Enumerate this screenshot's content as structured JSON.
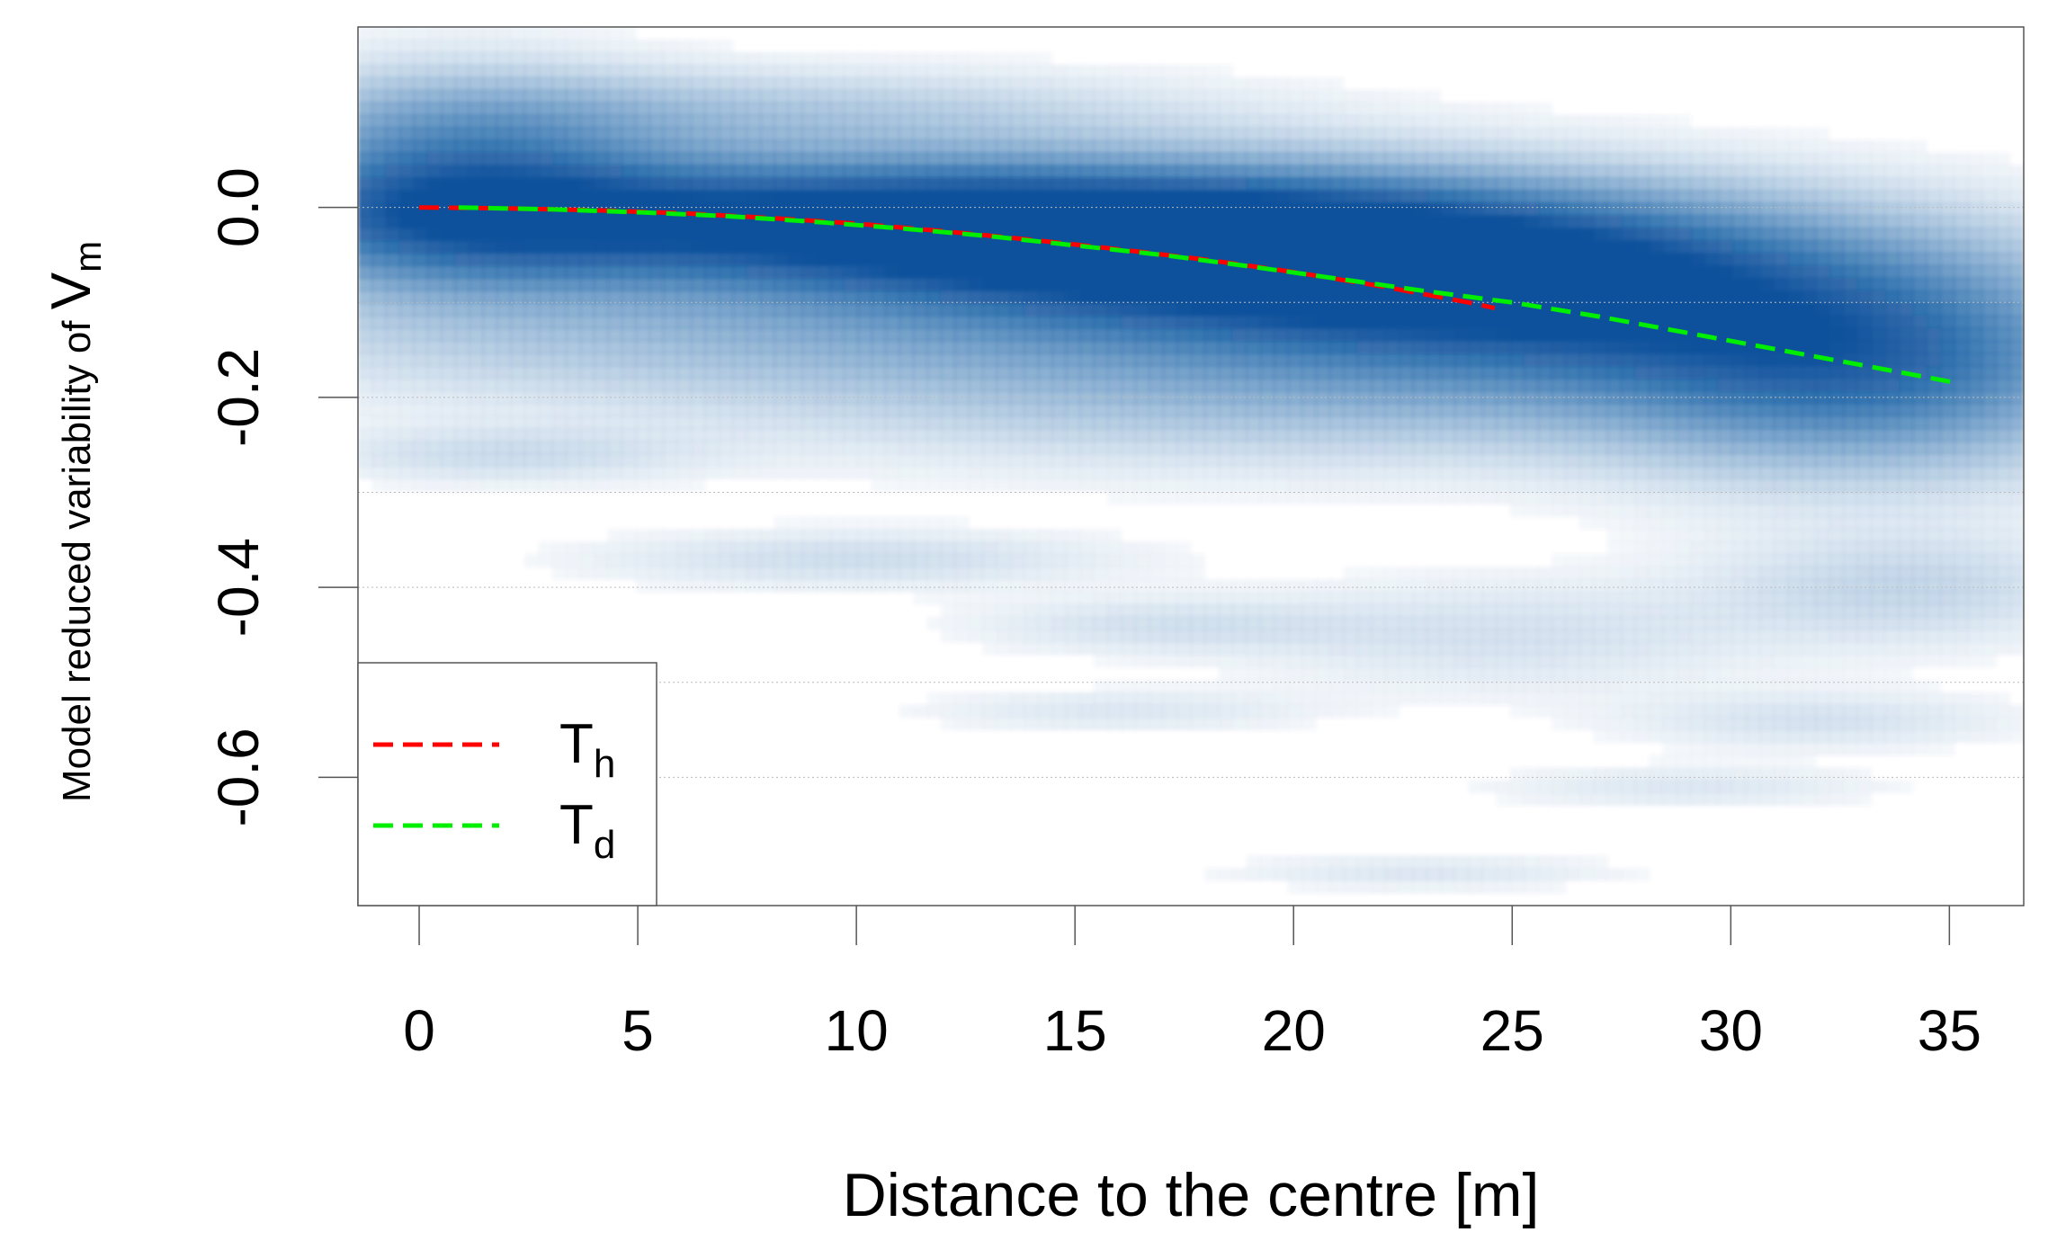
{
  "chart_data": {
    "type": "line",
    "subtype": "smoothed density scatter with fitted trend lines",
    "xlabel": "Distance to the centre [m]",
    "ylabel": {
      "text": "Model reduced variability of ",
      "symbol": "V",
      "subscript": "m"
    },
    "xlim": [
      -1.4,
      36.7
    ],
    "ylim": [
      -0.735,
      0.19
    ],
    "x_ticks": [
      0,
      5,
      10,
      15,
      20,
      25,
      30,
      35
    ],
    "x_tick_labels": [
      "0",
      "5",
      "10",
      "15",
      "20",
      "25",
      "30",
      "35"
    ],
    "y_ticks": [
      0.0,
      -0.2,
      -0.4,
      -0.6
    ],
    "y_tick_labels": [
      "0.0",
      "-0.2",
      "-0.4",
      "-0.6"
    ],
    "gridlines_y": [
      0.0,
      -0.1,
      -0.2,
      -0.3,
      -0.4,
      -0.5,
      -0.6
    ],
    "grid": true,
    "legend_position": "bottom-left",
    "density_color": "#08519c",
    "density_blobs": [
      {
        "x": 10,
        "y": -0.01,
        "sx": 9,
        "sy": 0.045,
        "w": 0.95
      },
      {
        "x": 19,
        "y": -0.05,
        "sx": 7,
        "sy": 0.05,
        "w": 0.9
      },
      {
        "x": 26,
        "y": -0.1,
        "sx": 6,
        "sy": 0.06,
        "w": 0.75
      },
      {
        "x": 33,
        "y": -0.17,
        "sx": 4,
        "sy": 0.07,
        "w": 0.65
      },
      {
        "x": 1,
        "y": 0.02,
        "sx": 3,
        "sy": 0.07,
        "w": 0.6
      },
      {
        "x": 7,
        "y": 0.1,
        "sx": 7,
        "sy": 0.03,
        "w": 0.2
      },
      {
        "x": 10,
        "y": -0.13,
        "sx": 9,
        "sy": 0.05,
        "w": 0.25
      },
      {
        "x": 20,
        "y": -0.2,
        "sx": 8,
        "sy": 0.05,
        "w": 0.2
      },
      {
        "x": 10,
        "y": -0.37,
        "sx": 4,
        "sy": 0.02,
        "w": 0.12
      },
      {
        "x": 17,
        "y": -0.44,
        "sx": 3,
        "sy": 0.02,
        "w": 0.1
      },
      {
        "x": 16,
        "y": -0.53,
        "sx": 3,
        "sy": 0.015,
        "w": 0.08
      },
      {
        "x": 23,
        "y": -0.7,
        "sx": 3,
        "sy": 0.012,
        "w": 0.08
      },
      {
        "x": 29,
        "y": -0.61,
        "sx": 3,
        "sy": 0.015,
        "w": 0.08
      },
      {
        "x": 32,
        "y": -0.54,
        "sx": 3,
        "sy": 0.02,
        "w": 0.1
      },
      {
        "x": 34,
        "y": -0.4,
        "sx": 3,
        "sy": 0.04,
        "w": 0.15
      },
      {
        "x": 2,
        "y": -0.26,
        "sx": 3,
        "sy": 0.02,
        "w": 0.12
      },
      {
        "x": 25,
        "y": -0.45,
        "sx": 4,
        "sy": 0.04,
        "w": 0.1
      }
    ],
    "series": [
      {
        "name": "T",
        "subscript": "h",
        "color": "#ff0000",
        "style": "dashed",
        "x": [
          0,
          2,
          4,
          6,
          8,
          10,
          12,
          14,
          16,
          18,
          20,
          22,
          24,
          24.6
        ],
        "y": [
          0.0,
          -0.001,
          -0.003,
          -0.006,
          -0.011,
          -0.017,
          -0.025,
          -0.034,
          -0.044,
          -0.055,
          -0.068,
          -0.083,
          -0.1,
          -0.106
        ]
      },
      {
        "name": "T",
        "subscript": "d",
        "color": "#00ee00",
        "style": "dashed",
        "x": [
          0.9,
          3,
          5,
          7,
          9,
          11,
          13,
          15,
          17,
          19,
          21,
          23,
          25,
          27,
          29,
          31,
          33,
          35.2
        ],
        "y": [
          0.0,
          -0.002,
          -0.005,
          -0.009,
          -0.015,
          -0.022,
          -0.03,
          -0.04,
          -0.05,
          -0.062,
          -0.075,
          -0.088,
          -0.1,
          -0.115,
          -0.132,
          -0.149,
          -0.166,
          -0.185
        ]
      }
    ]
  }
}
